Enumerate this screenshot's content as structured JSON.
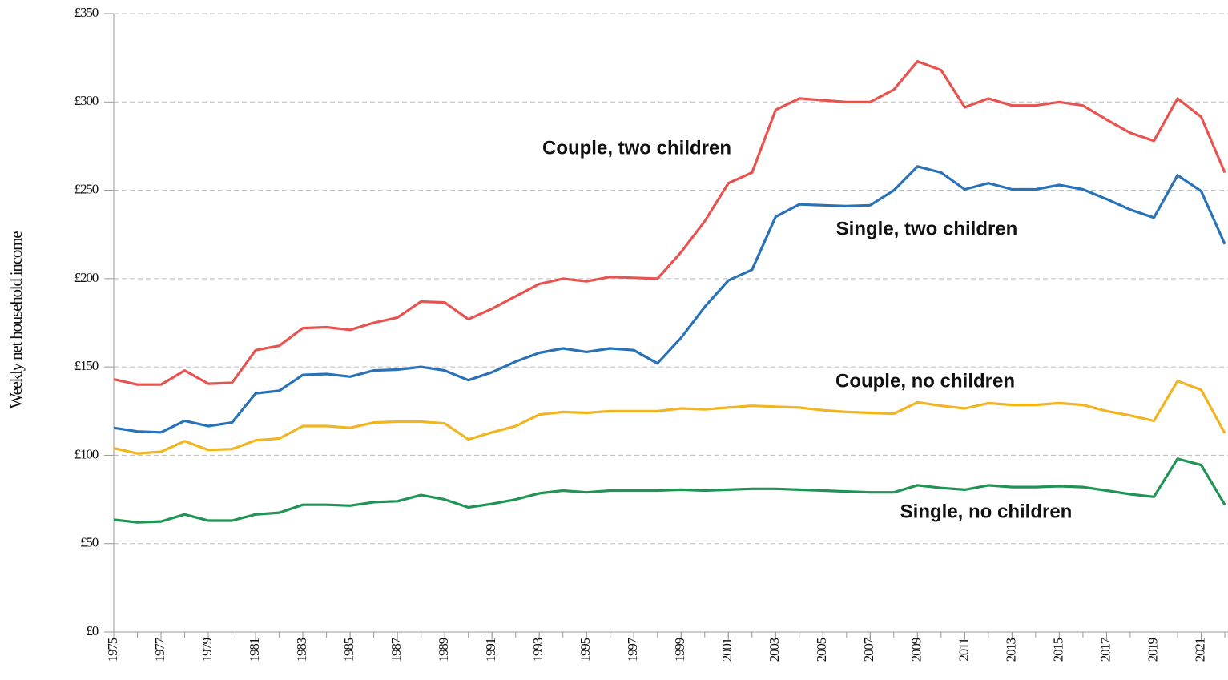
{
  "chart_data": {
    "type": "line",
    "y_label": "Weekly net household income",
    "x": [
      1975,
      1976,
      1977,
      1978,
      1979,
      1980,
      1981,
      1982,
      1983,
      1984,
      1985,
      1986,
      1987,
      1988,
      1989,
      1990,
      1991,
      1992,
      1993,
      1994,
      1995,
      1996,
      1997,
      1998,
      1999,
      2000,
      2001,
      2002,
      2003,
      2004,
      2005,
      2006,
      2007,
      2008,
      2009,
      2010,
      2011,
      2012,
      2013,
      2014,
      2015,
      2016,
      2017,
      2018,
      2019,
      2020,
      2021,
      2022
    ],
    "series": [
      {
        "name": "Couple, two children",
        "color": "#e8534f",
        "values": [
          143,
          140,
          140,
          148,
          140.5,
          141,
          159.5,
          162,
          172,
          172.5,
          171,
          175,
          178,
          187,
          186.5,
          177,
          183,
          190,
          197,
          200,
          198.5,
          201,
          200.5,
          200,
          215,
          232.5,
          254,
          260,
          295.5,
          302,
          301,
          300,
          300,
          307,
          323,
          318,
          297,
          302,
          298,
          298,
          300,
          298,
          290,
          282.5,
          278,
          302,
          291.5,
          260
        ]
      },
      {
        "name": "Single, two children",
        "color": "#2a72b8",
        "values": [
          115.5,
          113.5,
          113,
          119.5,
          116.5,
          118.5,
          135,
          136.5,
          145.5,
          146,
          144.5,
          148,
          148.5,
          150,
          148,
          142.5,
          147,
          153,
          158,
          160.5,
          158.5,
          160.5,
          159.5,
          152,
          166.5,
          184,
          199,
          205,
          235,
          242,
          241.5,
          241,
          241.5,
          250,
          263.5,
          260,
          250.5,
          254,
          250.5,
          250.5,
          253,
          250.5,
          245,
          239,
          234.5,
          258.5,
          249.5,
          219.5
        ]
      },
      {
        "name": "Couple, no children",
        "color": "#f2b522",
        "values": [
          104,
          101,
          102,
          108,
          103,
          103.5,
          108.5,
          109.5,
          116.5,
          116.5,
          115.5,
          118.5,
          119,
          119,
          118,
          109,
          113,
          116.5,
          123,
          124.5,
          124,
          125,
          125,
          125,
          126.5,
          126,
          127,
          128,
          127.5,
          127,
          125.5,
          124.5,
          124,
          123.5,
          130,
          128,
          126.5,
          129.5,
          128.5,
          128.5,
          129.5,
          128.5,
          125,
          122.5,
          119.5,
          142,
          137,
          112.5
        ]
      },
      {
        "name": "Single, no children",
        "color": "#1f9455",
        "values": [
          63.5,
          62,
          62.5,
          66.5,
          63,
          63,
          66.5,
          67.5,
          72,
          72,
          71.5,
          73.5,
          74,
          77.5,
          75,
          70.5,
          72.5,
          75,
          78.5,
          80,
          79,
          80,
          80,
          80,
          80.5,
          80,
          80.5,
          81,
          81,
          80.5,
          80,
          79.5,
          79,
          79,
          83,
          81.5,
          80.5,
          83,
          82,
          82,
          82.5,
          82,
          80,
          78,
          76.5,
          98,
          94.5,
          72
        ]
      }
    ],
    "xlim": [
      1975,
      2022
    ],
    "xticks": [
      1975,
      1977,
      1979,
      1981,
      1983,
      1985,
      1987,
      1989,
      1991,
      1993,
      1995,
      1997,
      1999,
      2001,
      2003,
      2005,
      2007,
      2009,
      2011,
      2013,
      2015,
      2017,
      2019,
      2021
    ],
    "ylim": [
      0,
      350
    ],
    "yticks": [
      {
        "value": 0,
        "label": "£0"
      },
      {
        "value": 50,
        "label": "£50"
      },
      {
        "value": 100,
        "label": "£100"
      },
      {
        "value": 150,
        "label": "£150"
      },
      {
        "value": 200,
        "label": "£200"
      },
      {
        "value": 250,
        "label": "£250"
      },
      {
        "value": 300,
        "label": "£300"
      },
      {
        "value": 350,
        "label": "£350"
      }
    ],
    "grid": true
  }
}
